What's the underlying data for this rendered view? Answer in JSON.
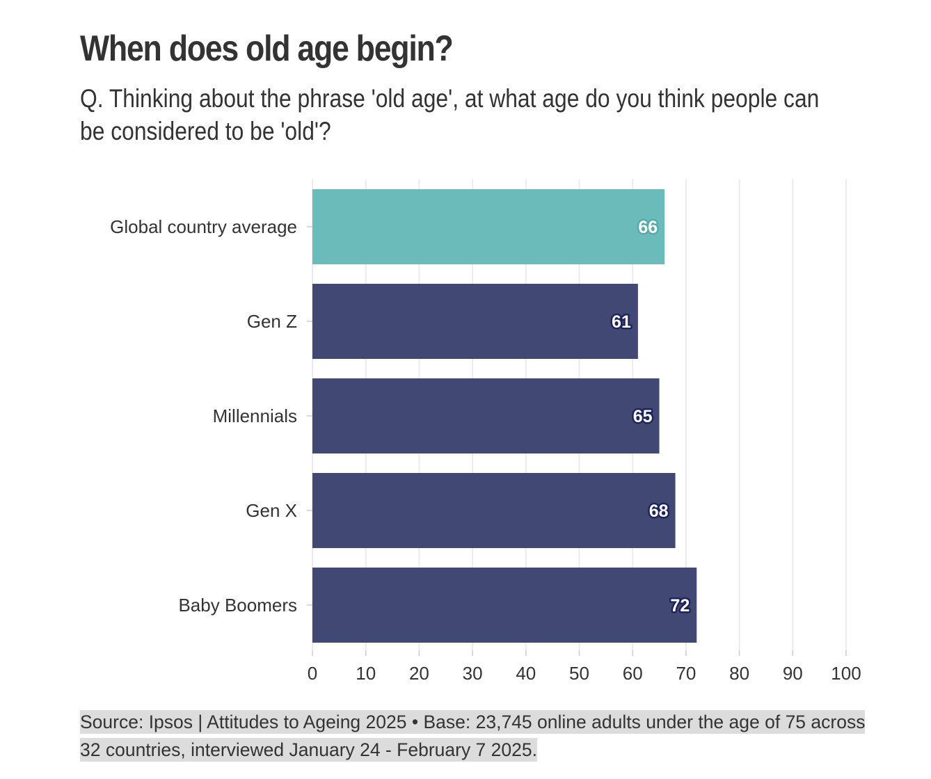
{
  "title": "When does old age begin?",
  "subtitle": "Q. Thinking about the phrase 'old age', at what age do you think people can be considered to be 'old'?",
  "source": "Source: Ipsos | Attitudes to Ageing 2025 • Base: 23,745 online adults under the age of 75 across 32 countries, interviewed January 24 - February 7 2025.",
  "colors": {
    "highlight": "#6bbbbb",
    "bar": "#424874",
    "label_halo_highlight": "#5aa9aa",
    "label_halo_bar": "#1e2459",
    "grid": "#ebebeb"
  },
  "chart_data": {
    "type": "bar",
    "orientation": "horizontal",
    "categories": [
      "Global country average",
      "Gen Z",
      "Millennials",
      "Gen X",
      "Baby Boomers"
    ],
    "values": [
      66,
      61,
      65,
      68,
      72
    ],
    "highlight_index": 0,
    "xlim": [
      0,
      100
    ],
    "xticks": [
      0,
      10,
      20,
      30,
      40,
      50,
      60,
      70,
      80,
      90,
      100
    ],
    "grid": true
  }
}
